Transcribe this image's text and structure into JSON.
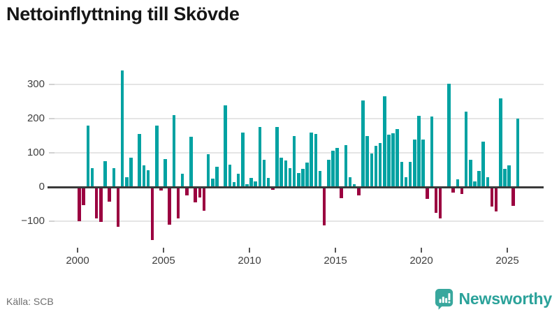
{
  "title": "Nettoinflyttning till Skövde",
  "footer": {
    "source": "Källa: SCB",
    "brand": "Newsworthy"
  },
  "colors": {
    "positive_bar": "#00a2a2",
    "negative_bar": "#9b0040",
    "zero_axis": "#3a3a3a",
    "gridline": "#e5e5e5",
    "brand_teal": "#2ba29a",
    "logo_badge": "#38a79d"
  },
  "chart_data": {
    "type": "bar",
    "title": "Nettoinflyttning till Skövde",
    "x_unit": "quarter",
    "x_tick_years": [
      2000,
      2005,
      2010,
      2015,
      2020,
      2025
    ],
    "y_ticks": [
      300,
      200,
      100,
      0,
      -100
    ],
    "ylim": [
      -170,
      350
    ],
    "grid": "horizontal",
    "legend": "none",
    "series": [
      {
        "year": 2000,
        "quarterly": [
          -101,
          -54,
          180,
          55
        ]
      },
      {
        "year": 2001,
        "quarterly": [
          -92,
          -103,
          75,
          -42
        ]
      },
      {
        "year": 2002,
        "quarterly": [
          55,
          -117,
          340,
          29
        ]
      },
      {
        "year": 2003,
        "quarterly": [
          86,
          0,
          156,
          63
        ]
      },
      {
        "year": 2004,
        "quarterly": [
          48,
          -156,
          180,
          -11
        ]
      },
      {
        "year": 2005,
        "quarterly": [
          82,
          -111,
          211,
          -92
        ]
      },
      {
        "year": 2006,
        "quarterly": [
          39,
          -24,
          147,
          -45
        ]
      },
      {
        "year": 2007,
        "quarterly": [
          -31,
          -70,
          95,
          25
        ]
      },
      {
        "year": 2008,
        "quarterly": [
          59,
          0,
          238,
          65
        ]
      },
      {
        "year": 2009,
        "quarterly": [
          14,
          38,
          160,
          8
        ]
      },
      {
        "year": 2010,
        "quarterly": [
          26,
          16,
          176,
          79
        ]
      },
      {
        "year": 2011,
        "quarterly": [
          26,
          -9,
          175,
          85
        ]
      },
      {
        "year": 2012,
        "quarterly": [
          78,
          55,
          148,
          40
        ]
      },
      {
        "year": 2013,
        "quarterly": [
          53,
          71,
          160,
          156
        ]
      },
      {
        "year": 2014,
        "quarterly": [
          46,
          -113,
          80,
          106
        ]
      },
      {
        "year": 2015,
        "quarterly": [
          115,
          -33,
          122,
          28
        ]
      },
      {
        "year": 2016,
        "quarterly": [
          9,
          -24,
          254,
          150
        ]
      },
      {
        "year": 2017,
        "quarterly": [
          98,
          121,
          128,
          266
        ]
      },
      {
        "year": 2018,
        "quarterly": [
          153,
          158,
          169,
          74
        ]
      },
      {
        "year": 2019,
        "quarterly": [
          28,
          74,
          138,
          208
        ]
      },
      {
        "year": 2020,
        "quarterly": [
          138,
          -34,
          207,
          -75
        ]
      },
      {
        "year": 2021,
        "quarterly": [
          -92,
          0,
          303,
          -16
        ]
      },
      {
        "year": 2022,
        "quarterly": [
          23,
          -21,
          221,
          79
        ]
      },
      {
        "year": 2023,
        "quarterly": [
          16,
          47,
          133,
          28
        ]
      },
      {
        "year": 2024,
        "quarterly": [
          -58,
          -71,
          259,
          53
        ]
      },
      {
        "year": 2025,
        "quarterly": [
          63,
          -56,
          200
        ]
      }
    ]
  }
}
